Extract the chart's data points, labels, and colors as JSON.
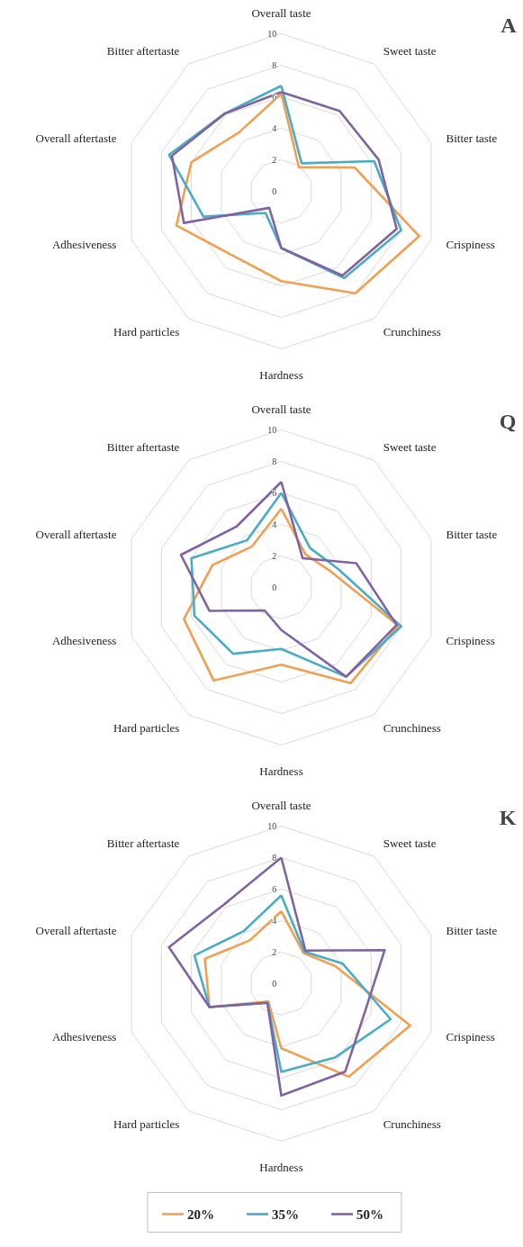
{
  "chart_data": [
    {
      "type": "radar",
      "title": "A",
      "categories": [
        "Overall taste",
        "Sweet taste",
        "Bitter taste",
        "Crispiness",
        "Crunchiness",
        "Hardness",
        "Hard particles",
        "Adhesiveness",
        "Overall aftertaste",
        "Bitter aftertaste"
      ],
      "ylim": [
        0,
        10
      ],
      "yticks": [
        0,
        2,
        4,
        6,
        8,
        10
      ],
      "grid": true,
      "legend": false,
      "series": [
        {
          "color": "#f0a050",
          "values": [
            6.2,
            1.9,
            4.9,
            9.2,
            8.0,
            5.7,
            5.1,
            7.0,
            6.0,
            4.6
          ]
        },
        {
          "color": "#4bacc6",
          "values": [
            6.7,
            2.2,
            6.2,
            8.0,
            6.8,
            3.6,
            1.7,
            5.2,
            7.5,
            6.1
          ]
        },
        {
          "color": "#8064a2",
          "values": [
            6.3,
            6.3,
            6.5,
            7.7,
            6.6,
            3.6,
            1.3,
            6.5,
            7.3,
            6.1
          ]
        }
      ]
    },
    {
      "type": "radar",
      "title": "Q",
      "categories": [
        "Overall taste",
        "Sweet taste",
        "Bitter taste",
        "Crispiness",
        "Crunchiness",
        "Hardness",
        "Hard particles",
        "Adhesiveness",
        "Overall aftertaste",
        "Bitter aftertaste"
      ],
      "ylim": [
        0,
        10
      ],
      "yticks": [
        0,
        2,
        4,
        6,
        8,
        10
      ],
      "grid": true,
      "legend": false,
      "series": [
        {
          "color": "#f0a050",
          "values": [
            5.0,
            2.6,
            3.3,
            7.8,
            7.5,
            4.9,
            7.3,
            6.5,
            4.6,
            3.2
          ]
        },
        {
          "color": "#4bacc6",
          "values": [
            6.0,
            3.1,
            3.8,
            8.0,
            7.0,
            3.9,
            5.2,
            5.8,
            6.0,
            3.7
          ]
        },
        {
          "color": "#8064a2",
          "values": [
            6.7,
            2.3,
            5.0,
            7.7,
            7.0,
            2.7,
            1.8,
            4.8,
            6.7,
            4.8
          ]
        }
      ]
    },
    {
      "type": "radar",
      "title": "K",
      "categories": [
        "Overall taste",
        "Sweet taste",
        "Bitter taste",
        "Crispiness",
        "Crunchiness",
        "Hardness",
        "Hard particles",
        "Adhesiveness",
        "Overall aftertaste",
        "Bitter aftertaste"
      ],
      "ylim": [
        0,
        10
      ],
      "yticks": [
        0,
        2,
        4,
        6,
        8,
        10
      ],
      "grid": true,
      "legend": "bottom",
      "series": [
        {
          "name": "20%",
          "color": "#f0a050",
          "values": [
            4.6,
            2.4,
            3.6,
            8.6,
            7.3,
            4.1,
            1.4,
            4.8,
            5.1,
            3.4
          ]
        },
        {
          "name": "35%",
          "color": "#4bacc6",
          "values": [
            5.6,
            2.5,
            4.1,
            7.3,
            5.8,
            5.6,
            1.5,
            4.8,
            5.8,
            4.1
          ]
        },
        {
          "name": "50%",
          "color": "#8064a2",
          "values": [
            8.0,
            2.6,
            6.9,
            5.6,
            6.9,
            7.1,
            1.5,
            4.8,
            7.5,
            6.2
          ]
        }
      ]
    }
  ]
}
